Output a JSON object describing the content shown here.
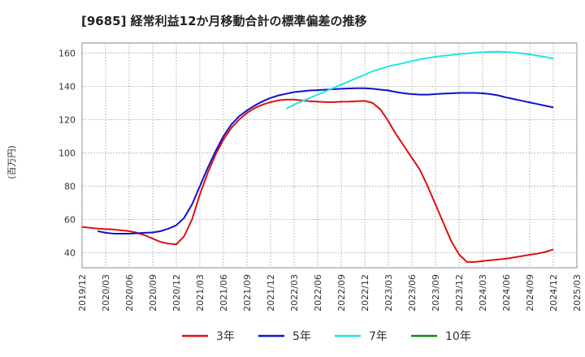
{
  "chart_data": {
    "type": "line",
    "title": "[9685]  経常利益12か月移動合計の標準偏差の推移",
    "ylabel": "(百万円)",
    "xlabel": "",
    "ylim": [
      31,
      166
    ],
    "yticks": [
      40,
      60,
      80,
      100,
      120,
      140,
      160
    ],
    "x_ticks": [
      "2019/12",
      "2020/03",
      "2020/06",
      "2020/09",
      "2020/12",
      "2021/03",
      "2021/06",
      "2021/09",
      "2021/12",
      "2022/03",
      "2022/06",
      "2022/09",
      "2022/12",
      "2023/03",
      "2023/06",
      "2023/09",
      "2023/12",
      "2024/03",
      "2024/06",
      "2024/09",
      "2024/12",
      "2025/03"
    ],
    "grid": true,
    "legend_position": "bottom",
    "series": [
      {
        "name": "3年",
        "color": "#dd1111",
        "points": [
          [
            "2019/12",
            55.5
          ],
          [
            "2020/01",
            55
          ],
          [
            "2020/02",
            54.5
          ],
          [
            "2020/03",
            54.2
          ],
          [
            "2020/04",
            54
          ],
          [
            "2020/05",
            53.5
          ],
          [
            "2020/06",
            53
          ],
          [
            "2020/07",
            52
          ],
          [
            "2020/08",
            50.5
          ],
          [
            "2020/09",
            48.5
          ],
          [
            "2020/10",
            46.5
          ],
          [
            "2020/11",
            45.5
          ],
          [
            "2020/12",
            45
          ],
          [
            "2021/01",
            50
          ],
          [
            "2021/02",
            60
          ],
          [
            "2021/03",
            75
          ],
          [
            "2021/04",
            88
          ],
          [
            "2021/05",
            99
          ],
          [
            "2021/06",
            108
          ],
          [
            "2021/07",
            115
          ],
          [
            "2021/08",
            120
          ],
          [
            "2021/09",
            124
          ],
          [
            "2021/10",
            127
          ],
          [
            "2021/11",
            129
          ],
          [
            "2021/12",
            130.5
          ],
          [
            "2022/01",
            131.5
          ],
          [
            "2022/02",
            132
          ],
          [
            "2022/03",
            132
          ],
          [
            "2022/04",
            131.5
          ],
          [
            "2022/05",
            131
          ],
          [
            "2022/06",
            130.8
          ],
          [
            "2022/07",
            130.5
          ],
          [
            "2022/08",
            130.5
          ],
          [
            "2022/09",
            130.7
          ],
          [
            "2022/10",
            130.8
          ],
          [
            "2022/11",
            131
          ],
          [
            "2022/12",
            131.2
          ],
          [
            "2023/01",
            130
          ],
          [
            "2023/02",
            126
          ],
          [
            "2023/03",
            119
          ],
          [
            "2023/04",
            111
          ],
          [
            "2023/05",
            104
          ],
          [
            "2023/06",
            97
          ],
          [
            "2023/07",
            90
          ],
          [
            "2023/08",
            80
          ],
          [
            "2023/09",
            69
          ],
          [
            "2023/10",
            58
          ],
          [
            "2023/11",
            47
          ],
          [
            "2023/12",
            39
          ],
          [
            "2024/01",
            34.5
          ],
          [
            "2024/02",
            34.5
          ],
          [
            "2024/03",
            35
          ],
          [
            "2024/04",
            35.5
          ],
          [
            "2024/05",
            36
          ],
          [
            "2024/06",
            36.5
          ],
          [
            "2024/07",
            37.2
          ],
          [
            "2024/08",
            38
          ],
          [
            "2024/09",
            38.8
          ],
          [
            "2024/10",
            39.5
          ],
          [
            "2024/11",
            40.5
          ],
          [
            "2024/12",
            42
          ]
        ]
      },
      {
        "name": "5年",
        "color": "#1111cc",
        "points": [
          [
            "2020/02",
            53
          ],
          [
            "2020/03",
            52
          ],
          [
            "2020/04",
            51.5
          ],
          [
            "2020/05",
            51.5
          ],
          [
            "2020/06",
            51.5
          ],
          [
            "2020/07",
            51.7
          ],
          [
            "2020/08",
            52
          ],
          [
            "2020/09",
            52.2
          ],
          [
            "2020/10",
            53
          ],
          [
            "2020/11",
            54.5
          ],
          [
            "2020/12",
            56.5
          ],
          [
            "2021/01",
            61
          ],
          [
            "2021/02",
            69
          ],
          [
            "2021/03",
            80
          ],
          [
            "2021/04",
            91
          ],
          [
            "2021/05",
            101
          ],
          [
            "2021/06",
            110
          ],
          [
            "2021/07",
            117
          ],
          [
            "2021/08",
            122
          ],
          [
            "2021/09",
            125.5
          ],
          [
            "2021/10",
            128.5
          ],
          [
            "2021/11",
            131
          ],
          [
            "2021/12",
            133
          ],
          [
            "2022/01",
            134.5
          ],
          [
            "2022/02",
            135.5
          ],
          [
            "2022/03",
            136.5
          ],
          [
            "2022/04",
            137
          ],
          [
            "2022/05",
            137.5
          ],
          [
            "2022/06",
            137.7
          ],
          [
            "2022/07",
            138
          ],
          [
            "2022/08",
            138.2
          ],
          [
            "2022/09",
            138.5
          ],
          [
            "2022/10",
            138.7
          ],
          [
            "2022/11",
            138.8
          ],
          [
            "2022/12",
            138.8
          ],
          [
            "2023/01",
            138.5
          ],
          [
            "2023/02",
            138
          ],
          [
            "2023/03",
            137.5
          ],
          [
            "2023/04",
            136.5
          ],
          [
            "2023/05",
            135.8
          ],
          [
            "2023/06",
            135.3
          ],
          [
            "2023/07",
            135
          ],
          [
            "2023/08",
            135
          ],
          [
            "2023/09",
            135.3
          ],
          [
            "2023/10",
            135.6
          ],
          [
            "2023/11",
            135.8
          ],
          [
            "2023/12",
            136
          ],
          [
            "2024/01",
            136
          ],
          [
            "2024/02",
            136
          ],
          [
            "2024/03",
            135.8
          ],
          [
            "2024/04",
            135.3
          ],
          [
            "2024/05",
            134.5
          ],
          [
            "2024/06",
            133.3
          ],
          [
            "2024/07",
            132.3
          ],
          [
            "2024/08",
            131.3
          ],
          [
            "2024/09",
            130.3
          ],
          [
            "2024/10",
            129.3
          ],
          [
            "2024/11",
            128.3
          ],
          [
            "2024/12",
            127.3
          ]
        ]
      },
      {
        "name": "7年",
        "color": "#22e5e5",
        "points": [
          [
            "2022/02",
            126.5
          ],
          [
            "2022/03",
            129
          ],
          [
            "2022/04",
            131
          ],
          [
            "2022/05",
            133
          ],
          [
            "2022/06",
            135
          ],
          [
            "2022/07",
            137
          ],
          [
            "2022/08",
            139
          ],
          [
            "2022/09",
            141
          ],
          [
            "2022/10",
            143
          ],
          [
            "2022/11",
            145
          ],
          [
            "2022/12",
            147
          ],
          [
            "2023/01",
            149
          ],
          [
            "2023/02",
            150.5
          ],
          [
            "2023/03",
            152
          ],
          [
            "2023/04",
            153
          ],
          [
            "2023/05",
            154
          ],
          [
            "2023/06",
            155.2
          ],
          [
            "2023/07",
            156.2
          ],
          [
            "2023/08",
            157
          ],
          [
            "2023/09",
            157.7
          ],
          [
            "2023/10",
            158.3
          ],
          [
            "2023/11",
            158.8
          ],
          [
            "2023/12",
            159.3
          ],
          [
            "2024/01",
            159.7
          ],
          [
            "2024/02",
            160.2
          ],
          [
            "2024/03",
            160.5
          ],
          [
            "2024/04",
            160.7
          ],
          [
            "2024/05",
            160.8
          ],
          [
            "2024/06",
            160.6
          ],
          [
            "2024/07",
            160.2
          ],
          [
            "2024/08",
            159.7
          ],
          [
            "2024/09",
            159.1
          ],
          [
            "2024/10",
            158.4
          ],
          [
            "2024/11",
            157.6
          ],
          [
            "2024/12",
            156.6
          ]
        ]
      },
      {
        "name": "10年",
        "color": "#118811",
        "points": []
      }
    ]
  }
}
